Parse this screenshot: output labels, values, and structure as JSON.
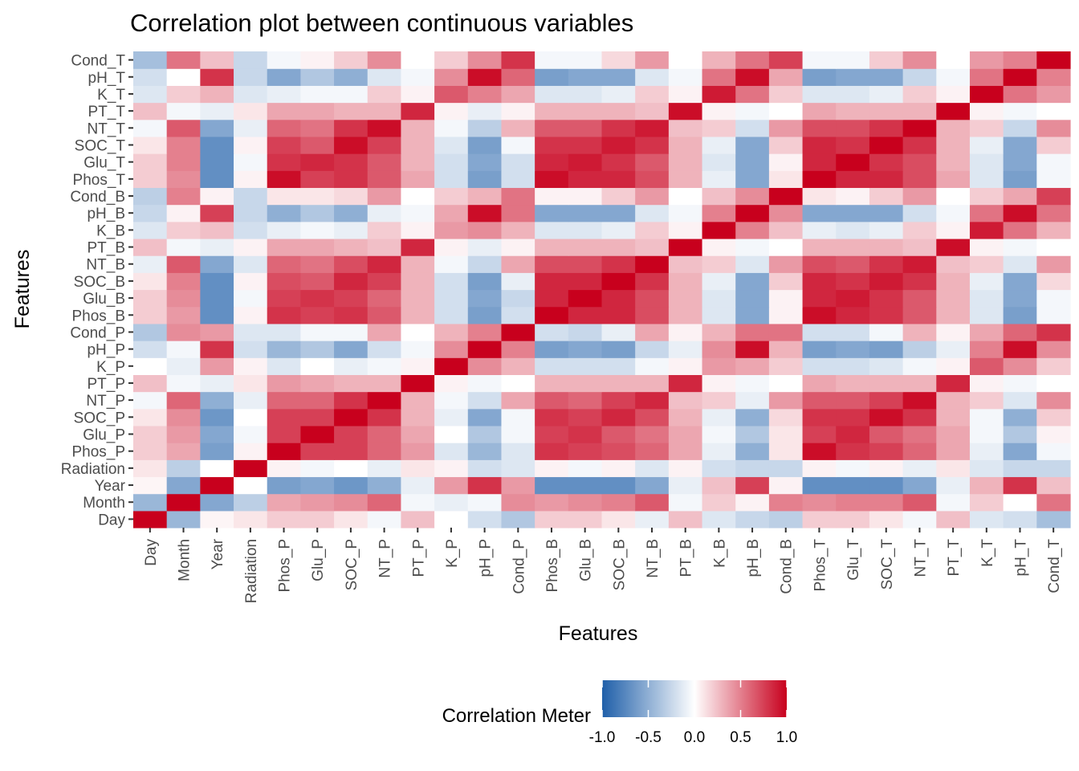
{
  "chart_data": {
    "type": "heatmap",
    "title": "Correlation plot between continuous variables",
    "xlabel": "Features",
    "ylabel": "Features",
    "variables": [
      "Day",
      "Month",
      "Year",
      "Radiation",
      "Phos_P",
      "Glu_P",
      "SOC_P",
      "NT_P",
      "PT_P",
      "K_P",
      "pH_P",
      "Cond_P",
      "Phos_B",
      "Glu_B",
      "SOC_B",
      "NT_B",
      "PT_B",
      "K_B",
      "pH_B",
      "Cond_B",
      "Phos_T",
      "Glu_T",
      "SOC_T",
      "NT_T",
      "PT_T",
      "K_T",
      "pH_T",
      "Cond_T"
    ],
    "y_order": "bottom-to-top",
    "rows": [
      [
        1.0,
        -0.45,
        0.04,
        0.1,
        0.2,
        0.2,
        0.1,
        -0.05,
        0.25,
        0.0,
        -0.2,
        -0.35,
        0.2,
        0.2,
        0.1,
        -0.1,
        0.25,
        -0.15,
        -0.25,
        -0.3,
        0.2,
        0.2,
        0.1,
        -0.05,
        0.25,
        -0.15,
        -0.2,
        -0.4
      ],
      [
        -0.45,
        1.0,
        -0.55,
        -0.3,
        0.35,
        0.4,
        0.45,
        0.6,
        -0.05,
        -0.1,
        -0.05,
        0.45,
        0.4,
        0.45,
        0.5,
        0.65,
        -0.05,
        0.2,
        0.05,
        0.5,
        0.45,
        0.5,
        0.5,
        0.65,
        -0.05,
        0.2,
        0.0,
        0.55
      ],
      [
        0.04,
        -0.55,
        1.0,
        0.0,
        -0.6,
        -0.55,
        -0.65,
        -0.5,
        -0.1,
        0.4,
        0.8,
        0.4,
        -0.7,
        -0.7,
        -0.7,
        -0.55,
        -0.1,
        0.25,
        0.75,
        0.05,
        -0.7,
        -0.7,
        -0.7,
        -0.55,
        -0.1,
        0.3,
        0.8,
        0.25
      ],
      [
        0.1,
        -0.3,
        0.0,
        1.0,
        0.05,
        -0.05,
        0.0,
        -0.1,
        0.1,
        0.05,
        -0.2,
        -0.15,
        0.05,
        -0.05,
        0.05,
        -0.15,
        0.05,
        -0.2,
        -0.25,
        -0.25,
        0.05,
        -0.05,
        0.05,
        -0.1,
        0.1,
        -0.15,
        -0.25,
        -0.25
      ],
      [
        0.2,
        0.35,
        -0.6,
        0.05,
        1.0,
        0.75,
        0.75,
        0.6,
        0.4,
        -0.15,
        -0.45,
        -0.15,
        0.8,
        0.75,
        0.7,
        0.6,
        0.35,
        -0.1,
        -0.5,
        0.1,
        0.95,
        0.8,
        0.75,
        0.6,
        0.35,
        -0.1,
        -0.55,
        -0.05
      ],
      [
        0.2,
        0.4,
        -0.55,
        -0.05,
        0.75,
        1.0,
        0.75,
        0.6,
        0.35,
        0.0,
        -0.35,
        -0.05,
        0.75,
        0.8,
        0.65,
        0.55,
        0.35,
        -0.05,
        -0.35,
        0.1,
        0.75,
        0.85,
        0.65,
        0.55,
        0.35,
        -0.05,
        -0.35,
        0.05
      ],
      [
        0.1,
        0.45,
        -0.65,
        0.0,
        0.75,
        0.75,
        1.0,
        0.8,
        0.3,
        -0.1,
        -0.55,
        -0.05,
        0.8,
        0.75,
        0.85,
        0.7,
        0.3,
        -0.1,
        -0.5,
        0.15,
        0.8,
        0.8,
        0.95,
        0.8,
        0.3,
        -0.05,
        -0.5,
        0.2
      ],
      [
        -0.05,
        0.6,
        -0.5,
        -0.1,
        0.6,
        0.6,
        0.8,
        1.0,
        0.3,
        -0.05,
        -0.2,
        0.35,
        0.65,
        0.6,
        0.75,
        0.85,
        0.25,
        0.2,
        -0.1,
        0.4,
        0.65,
        0.65,
        0.75,
        0.95,
        0.3,
        0.2,
        -0.15,
        0.45
      ],
      [
        0.25,
        -0.05,
        -0.1,
        0.1,
        0.4,
        0.35,
        0.3,
        0.3,
        1.0,
        0.05,
        -0.05,
        0.0,
        0.3,
        0.3,
        0.3,
        0.3,
        0.85,
        0.05,
        -0.05,
        0.0,
        0.35,
        0.3,
        0.3,
        0.3,
        0.85,
        0.05,
        -0.05,
        0.0
      ],
      [
        0.0,
        -0.1,
        0.4,
        0.05,
        -0.15,
        0.0,
        -0.1,
        -0.05,
        0.05,
        1.0,
        0.45,
        0.3,
        -0.2,
        -0.2,
        -0.2,
        -0.05,
        0.05,
        0.4,
        0.35,
        0.2,
        -0.2,
        -0.2,
        -0.15,
        -0.05,
        0.05,
        0.65,
        0.45,
        0.2
      ],
      [
        -0.2,
        -0.05,
        0.8,
        -0.2,
        -0.45,
        -0.35,
        -0.55,
        -0.2,
        -0.05,
        0.45,
        1.0,
        0.5,
        -0.6,
        -0.55,
        -0.6,
        -0.25,
        -0.1,
        0.45,
        0.95,
        0.3,
        -0.6,
        -0.55,
        -0.6,
        -0.3,
        -0.1,
        0.5,
        0.95,
        0.45
      ],
      [
        -0.35,
        0.45,
        0.4,
        -0.15,
        -0.15,
        -0.05,
        -0.05,
        0.35,
        0.0,
        0.3,
        0.5,
        1.0,
        -0.2,
        -0.25,
        -0.1,
        0.35,
        0.05,
        0.3,
        0.55,
        0.55,
        -0.2,
        -0.2,
        -0.05,
        0.3,
        0.05,
        0.35,
        0.6,
        0.8
      ],
      [
        0.2,
        0.4,
        -0.7,
        0.05,
        0.8,
        0.75,
        0.8,
        0.65,
        0.3,
        -0.2,
        -0.6,
        -0.2,
        1.0,
        0.85,
        0.85,
        0.7,
        0.3,
        -0.15,
        -0.55,
        0.05,
        0.95,
        0.85,
        0.8,
        0.65,
        0.3,
        -0.15,
        -0.6,
        -0.05
      ],
      [
        0.2,
        0.45,
        -0.7,
        -0.05,
        0.75,
        0.8,
        0.75,
        0.6,
        0.3,
        -0.2,
        -0.55,
        -0.25,
        0.85,
        1.0,
        0.85,
        0.7,
        0.3,
        -0.15,
        -0.55,
        0.05,
        0.85,
        0.9,
        0.8,
        0.65,
        0.3,
        -0.15,
        -0.55,
        -0.05
      ],
      [
        0.1,
        0.5,
        -0.7,
        0.05,
        0.7,
        0.65,
        0.85,
        0.75,
        0.3,
        -0.2,
        -0.6,
        -0.1,
        0.85,
        0.85,
        1.0,
        0.8,
        0.3,
        -0.1,
        -0.55,
        0.2,
        0.85,
        0.8,
        0.9,
        0.8,
        0.3,
        -0.1,
        -0.55,
        0.15
      ],
      [
        -0.1,
        0.65,
        -0.55,
        -0.15,
        0.6,
        0.55,
        0.7,
        0.85,
        0.3,
        -0.05,
        -0.25,
        0.35,
        0.7,
        0.7,
        0.8,
        1.0,
        0.25,
        0.2,
        -0.15,
        0.4,
        0.7,
        0.65,
        0.8,
        0.9,
        0.25,
        0.2,
        -0.15,
        0.4
      ],
      [
        0.25,
        -0.05,
        -0.1,
        0.05,
        0.35,
        0.35,
        0.3,
        0.25,
        0.85,
        0.05,
        -0.1,
        0.05,
        0.3,
        0.3,
        0.3,
        0.25,
        1.0,
        0.05,
        -0.05,
        0.0,
        0.3,
        0.3,
        0.3,
        0.25,
        0.95,
        0.05,
        -0.05,
        0.0
      ],
      [
        -0.15,
        0.2,
        0.25,
        -0.2,
        -0.1,
        -0.05,
        -0.1,
        0.2,
        0.05,
        0.4,
        0.45,
        0.3,
        -0.15,
        -0.15,
        -0.1,
        0.2,
        0.05,
        1.0,
        0.5,
        0.25,
        -0.1,
        -0.15,
        -0.1,
        0.2,
        0.05,
        0.9,
        0.55,
        0.3
      ],
      [
        -0.25,
        0.05,
        0.75,
        -0.25,
        -0.5,
        -0.35,
        -0.5,
        -0.1,
        -0.05,
        0.35,
        0.95,
        0.55,
        -0.55,
        -0.55,
        -0.55,
        -0.15,
        -0.05,
        0.5,
        1.0,
        0.45,
        -0.55,
        -0.55,
        -0.55,
        -0.2,
        -0.05,
        0.55,
        0.95,
        0.55
      ],
      [
        -0.3,
        0.5,
        0.05,
        -0.25,
        0.1,
        0.1,
        0.15,
        0.4,
        0.0,
        0.2,
        0.3,
        0.55,
        0.05,
        0.05,
        0.2,
        0.4,
        0.0,
        0.25,
        0.45,
        1.0,
        0.1,
        0.05,
        0.2,
        0.4,
        0.0,
        0.2,
        0.35,
        0.75
      ],
      [
        0.2,
        0.45,
        -0.7,
        0.05,
        0.95,
        0.75,
        0.8,
        0.65,
        0.35,
        -0.2,
        -0.6,
        -0.2,
        0.95,
        0.85,
        0.85,
        0.7,
        0.3,
        -0.1,
        -0.55,
        0.1,
        1.0,
        0.85,
        0.85,
        0.7,
        0.35,
        -0.15,
        -0.6,
        -0.05
      ],
      [
        0.2,
        0.5,
        -0.7,
        -0.05,
        0.8,
        0.85,
        0.8,
        0.65,
        0.3,
        -0.2,
        -0.55,
        -0.2,
        0.85,
        0.9,
        0.8,
        0.65,
        0.3,
        -0.15,
        -0.55,
        0.05,
        0.85,
        1.0,
        0.8,
        0.7,
        0.3,
        -0.15,
        -0.55,
        -0.05
      ],
      [
        0.1,
        0.5,
        -0.7,
        0.05,
        0.75,
        0.65,
        0.95,
        0.75,
        0.3,
        -0.15,
        -0.6,
        -0.05,
        0.8,
        0.8,
        0.9,
        0.8,
        0.3,
        -0.1,
        -0.55,
        0.2,
        0.85,
        0.8,
        1.0,
        0.8,
        0.3,
        -0.1,
        -0.55,
        0.2
      ],
      [
        -0.05,
        0.65,
        -0.55,
        -0.1,
        0.6,
        0.55,
        0.8,
        0.95,
        0.3,
        -0.05,
        -0.3,
        0.3,
        0.65,
        0.65,
        0.8,
        0.9,
        0.25,
        0.2,
        -0.2,
        0.4,
        0.7,
        0.7,
        0.8,
        1.0,
        0.3,
        0.2,
        -0.25,
        0.45
      ],
      [
        0.25,
        -0.05,
        -0.1,
        0.1,
        0.35,
        0.35,
        0.3,
        0.3,
        0.85,
        0.05,
        -0.1,
        0.05,
        0.3,
        0.3,
        0.3,
        0.25,
        0.95,
        0.05,
        -0.05,
        0.0,
        0.35,
        0.3,
        0.3,
        0.3,
        1.0,
        0.05,
        -0.05,
        0.0
      ],
      [
        -0.15,
        0.2,
        0.3,
        -0.15,
        -0.1,
        -0.05,
        -0.05,
        0.2,
        0.05,
        0.65,
        0.5,
        0.35,
        -0.15,
        -0.15,
        -0.1,
        0.2,
        0.05,
        0.9,
        0.55,
        0.2,
        -0.15,
        -0.15,
        -0.1,
        0.2,
        0.05,
        1.0,
        0.55,
        0.4
      ],
      [
        -0.2,
        0.0,
        0.8,
        -0.25,
        -0.55,
        -0.35,
        -0.5,
        -0.15,
        -0.05,
        0.45,
        0.95,
        0.6,
        -0.6,
        -0.55,
        -0.55,
        -0.15,
        -0.05,
        0.55,
        0.95,
        0.35,
        -0.6,
        -0.55,
        -0.55,
        -0.25,
        -0.05,
        0.55,
        1.0,
        0.5
      ],
      [
        -0.4,
        0.55,
        0.25,
        -0.25,
        -0.05,
        0.05,
        0.2,
        0.45,
        0.0,
        0.2,
        0.45,
        0.8,
        -0.05,
        -0.05,
        0.15,
        0.4,
        0.0,
        0.3,
        0.55,
        0.75,
        -0.05,
        -0.05,
        0.2,
        0.45,
        0.0,
        0.4,
        0.5,
        1.0
      ]
    ],
    "legend": {
      "title": "Correlation Meter",
      "position": "bottom",
      "min": -1,
      "max": 1,
      "ticks": [
        "-1.0",
        "-0.5",
        "0.0",
        "0.5",
        "1.0"
      ],
      "colors": {
        "low": "#1f5fa9",
        "mid": "#ffffff",
        "high": "#c8001d"
      }
    },
    "background": "#ebebeb",
    "grid": true
  }
}
